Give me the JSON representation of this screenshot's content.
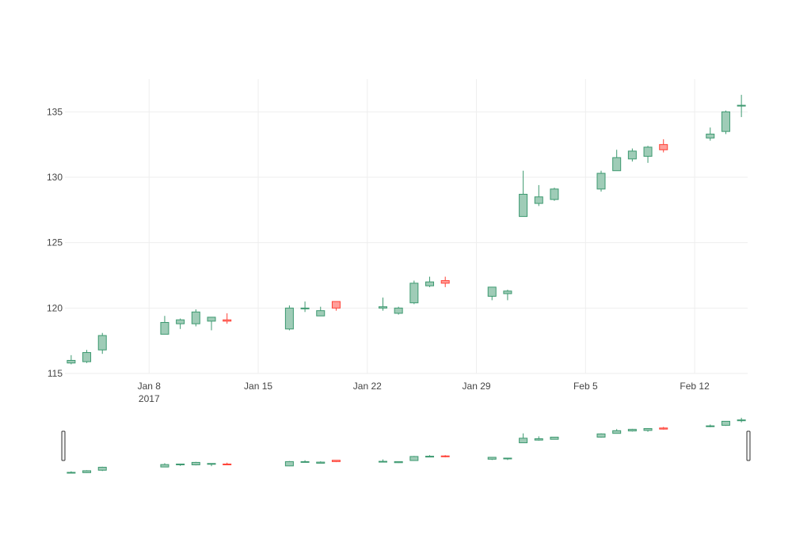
{
  "chart_data": {
    "type": "candlestick",
    "title": "",
    "xlabel": "",
    "ylabel": "",
    "xlim": [
      "2017-01-03",
      "2017-02-15"
    ],
    "ylim": [
      115,
      137.5
    ],
    "x_ticks": [
      {
        "date": "2017-01-08",
        "label": "Jan 8",
        "sublabel": "2017"
      },
      {
        "date": "2017-01-15",
        "label": "Jan 15",
        "sublabel": ""
      },
      {
        "date": "2017-01-22",
        "label": "Jan 22",
        "sublabel": ""
      },
      {
        "date": "2017-01-29",
        "label": "Jan 29",
        "sublabel": ""
      },
      {
        "date": "2017-02-05",
        "label": "Feb 5",
        "sublabel": ""
      },
      {
        "date": "2017-02-12",
        "label": "Feb 12",
        "sublabel": ""
      }
    ],
    "y_ticks": [
      115,
      120,
      125,
      130,
      135
    ],
    "grid": true,
    "legend": "none",
    "range_slider": true,
    "colors": {
      "increasing": "#3d9970",
      "increasing_fill": "#9fccb7",
      "decreasing": "#ff4136",
      "decreasing_fill": "#ff9f9a"
    },
    "candles": [
      {
        "date": "2017-01-03",
        "open": 115.8,
        "high": 116.4,
        "low": 115.7,
        "close": 116.0
      },
      {
        "date": "2017-01-04",
        "open": 115.9,
        "high": 116.8,
        "low": 115.8,
        "close": 116.6
      },
      {
        "date": "2017-01-05",
        "open": 116.8,
        "high": 118.1,
        "low": 116.5,
        "close": 117.9
      },
      {
        "date": "2017-01-09",
        "open": 118.0,
        "high": 119.4,
        "low": 118.0,
        "close": 118.9
      },
      {
        "date": "2017-01-10",
        "open": 118.8,
        "high": 119.2,
        "low": 118.4,
        "close": 119.1
      },
      {
        "date": "2017-01-11",
        "open": 118.8,
        "high": 119.9,
        "low": 118.6,
        "close": 119.7
      },
      {
        "date": "2017-01-12",
        "open": 119.0,
        "high": 119.3,
        "low": 118.3,
        "close": 119.3
      },
      {
        "date": "2017-01-13",
        "open": 119.1,
        "high": 119.6,
        "low": 118.8,
        "close": 119.0
      },
      {
        "date": "2017-01-17",
        "open": 118.4,
        "high": 120.2,
        "low": 118.3,
        "close": 120.0
      },
      {
        "date": "2017-01-18",
        "open": 120.0,
        "high": 120.5,
        "low": 119.7,
        "close": 120.0
      },
      {
        "date": "2017-01-19",
        "open": 119.4,
        "high": 120.1,
        "low": 119.4,
        "close": 119.8
      },
      {
        "date": "2017-01-20",
        "open": 120.5,
        "high": 120.5,
        "low": 119.8,
        "close": 120.0
      },
      {
        "date": "2017-01-23",
        "open": 120.0,
        "high": 120.8,
        "low": 119.8,
        "close": 120.1
      },
      {
        "date": "2017-01-24",
        "open": 119.6,
        "high": 120.1,
        "low": 119.5,
        "close": 120.0
      },
      {
        "date": "2017-01-25",
        "open": 120.4,
        "high": 122.1,
        "low": 120.3,
        "close": 121.9
      },
      {
        "date": "2017-01-26",
        "open": 121.7,
        "high": 122.4,
        "low": 121.6,
        "close": 122.0
      },
      {
        "date": "2017-01-27",
        "open": 122.1,
        "high": 122.4,
        "low": 121.6,
        "close": 121.9
      },
      {
        "date": "2017-01-30",
        "open": 120.9,
        "high": 121.6,
        "low": 120.6,
        "close": 121.6
      },
      {
        "date": "2017-01-31",
        "open": 121.1,
        "high": 121.4,
        "low": 120.6,
        "close": 121.3
      },
      {
        "date": "2017-02-01",
        "open": 127.0,
        "high": 130.5,
        "low": 127.0,
        "close": 128.7
      },
      {
        "date": "2017-02-02",
        "open": 128.0,
        "high": 129.4,
        "low": 127.8,
        "close": 128.5
      },
      {
        "date": "2017-02-03",
        "open": 128.3,
        "high": 129.2,
        "low": 128.2,
        "close": 129.1
      },
      {
        "date": "2017-02-06",
        "open": 129.1,
        "high": 130.5,
        "low": 128.9,
        "close": 130.3
      },
      {
        "date": "2017-02-07",
        "open": 130.5,
        "high": 132.1,
        "low": 130.5,
        "close": 131.5
      },
      {
        "date": "2017-02-08",
        "open": 131.4,
        "high": 132.2,
        "low": 131.2,
        "close": 132.0
      },
      {
        "date": "2017-02-09",
        "open": 131.6,
        "high": 132.4,
        "low": 131.1,
        "close": 132.3
      },
      {
        "date": "2017-02-10",
        "open": 132.5,
        "high": 132.9,
        "low": 131.9,
        "close": 132.1
      },
      {
        "date": "2017-02-13",
        "open": 133.0,
        "high": 133.8,
        "low": 132.8,
        "close": 133.3
      },
      {
        "date": "2017-02-14",
        "open": 133.5,
        "high": 135.1,
        "low": 133.3,
        "close": 135.0
      },
      {
        "date": "2017-02-15",
        "open": 135.5,
        "high": 136.3,
        "low": 134.6,
        "close": 135.5
      }
    ]
  }
}
